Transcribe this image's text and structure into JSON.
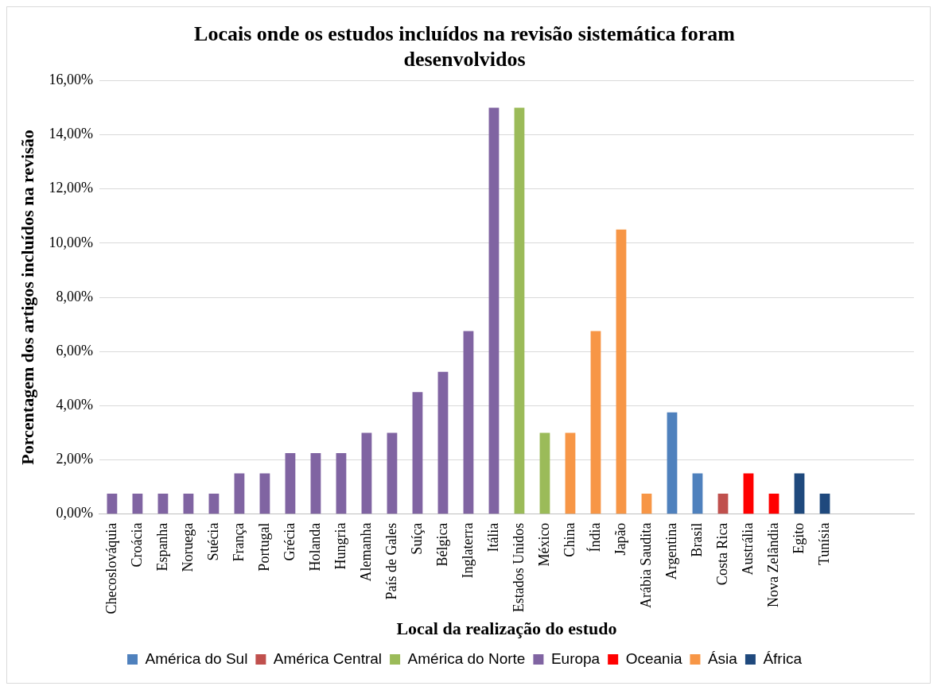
{
  "chart_data": {
    "type": "bar",
    "stacked": true,
    "title": "Locais onde os estudos incluídos na revisão sistemática foram desenvolvidos",
    "xlabel": "Local da realização do estudo",
    "ylabel": "Porcentagem dos artigos incluídos na revisão",
    "categories": [
      "Checoslováquia",
      "Croácia",
      "Espanha",
      "Noruega",
      "Suécia",
      "França",
      "Portugal",
      "Grécia",
      "Holanda",
      "Hungria",
      "Alemanha",
      "País de Gales",
      "Suíça",
      "Bélgica",
      "Inglaterra",
      "Itália",
      "Estados Unidos",
      "México",
      "China",
      "Índia",
      "Japão",
      "Arábia Saudita",
      "Argentina",
      "Brasil",
      "Costa Rica",
      "Austrália",
      "Nova Zelândia",
      "Egito",
      "Tunísia",
      null,
      null,
      null
    ],
    "series": [
      {
        "name": "América do Sul",
        "color": "#4f81bd",
        "values": [
          null,
          null,
          null,
          null,
          null,
          null,
          null,
          null,
          null,
          null,
          null,
          null,
          null,
          null,
          null,
          null,
          null,
          null,
          null,
          null,
          null,
          null,
          3.75,
          1.5,
          null,
          null,
          null,
          null,
          null,
          null,
          null,
          null
        ]
      },
      {
        "name": "América Central",
        "color": "#c0504d",
        "values": [
          null,
          null,
          null,
          null,
          null,
          null,
          null,
          null,
          null,
          null,
          null,
          null,
          null,
          null,
          null,
          null,
          null,
          null,
          null,
          null,
          null,
          null,
          null,
          null,
          0.75,
          null,
          null,
          null,
          null,
          null,
          null,
          null
        ]
      },
      {
        "name": "América do Norte",
        "color": "#9bbb59",
        "values": [
          null,
          null,
          null,
          null,
          null,
          null,
          null,
          null,
          null,
          null,
          null,
          null,
          null,
          null,
          null,
          null,
          15,
          3,
          null,
          null,
          null,
          null,
          null,
          null,
          null,
          null,
          null,
          null,
          null,
          null,
          null,
          null
        ]
      },
      {
        "name": "Europa",
        "color": "#8064a2",
        "values": [
          0.75,
          0.75,
          0.75,
          0.75,
          0.75,
          1.5,
          1.5,
          2.25,
          2.25,
          2.25,
          3,
          3,
          4.5,
          5.25,
          6.75,
          15,
          null,
          null,
          null,
          null,
          null,
          null,
          null,
          null,
          null,
          null,
          null,
          null,
          null,
          null,
          null,
          null
        ]
      },
      {
        "name": "Oceania",
        "color": "#ff0000",
        "values": [
          null,
          null,
          null,
          null,
          null,
          null,
          null,
          null,
          null,
          null,
          null,
          null,
          null,
          null,
          null,
          null,
          null,
          null,
          null,
          null,
          null,
          null,
          null,
          null,
          null,
          1.5,
          0.75,
          null,
          null,
          null,
          null,
          null
        ]
      },
      {
        "name": "Ásia",
        "color": "#f79646",
        "values": [
          null,
          null,
          null,
          null,
          null,
          null,
          null,
          null,
          null,
          null,
          null,
          null,
          null,
          null,
          null,
          null,
          null,
          null,
          3,
          6.75,
          10.5,
          0.75,
          null,
          null,
          null,
          null,
          null,
          null,
          null,
          null,
          null,
          null
        ]
      },
      {
        "name": "África",
        "color": "#1f497d",
        "values": [
          null,
          null,
          null,
          null,
          null,
          null,
          null,
          null,
          null,
          null,
          null,
          null,
          null,
          null,
          null,
          null,
          null,
          null,
          null,
          null,
          null,
          null,
          null,
          null,
          null,
          null,
          null,
          1.5,
          0.75,
          null,
          null,
          null
        ]
      }
    ],
    "ylim": [
      0,
      16
    ],
    "yticks": [
      {
        "value": 0,
        "label": "0,00%"
      },
      {
        "value": 2,
        "label": "2,00%"
      },
      {
        "value": 4,
        "label": "4,00%"
      },
      {
        "value": 6,
        "label": "6,00%"
      },
      {
        "value": 8,
        "label": "8,00%"
      },
      {
        "value": 10,
        "label": "10,00%"
      },
      {
        "value": 12,
        "label": "12,00%"
      },
      {
        "value": 14,
        "label": "14,00%"
      },
      {
        "value": 16,
        "label": "16,00%"
      }
    ],
    "grid": "y",
    "legend": "bottom"
  }
}
